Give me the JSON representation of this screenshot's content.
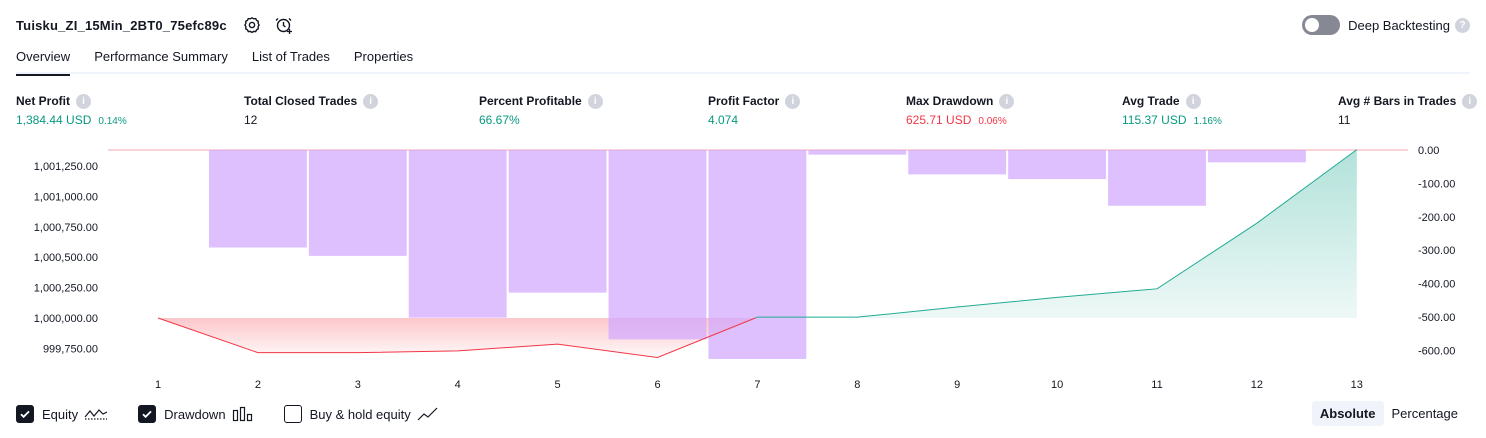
{
  "header": {
    "strategy_name": "Tuisku_ZI_15Min_2BT0_75efc89c",
    "deep_backtesting_label": "Deep Backtesting",
    "deep_backtesting_on": false
  },
  "tabs": [
    {
      "label": "Overview",
      "active": true
    },
    {
      "label": "Performance Summary"
    },
    {
      "label": "List of Trades"
    },
    {
      "label": "Properties"
    }
  ],
  "metrics": {
    "net_profit": {
      "label": "Net Profit",
      "value": "1,384.44 USD",
      "pct": "0.14%"
    },
    "total_closed_trades": {
      "label": "Total Closed Trades",
      "value": "12"
    },
    "percent_profitable": {
      "label": "Percent Profitable",
      "value": "66.67%"
    },
    "profit_factor": {
      "label": "Profit Factor",
      "value": "4.074"
    },
    "max_drawdown": {
      "label": "Max Drawdown",
      "value": "625.71 USD",
      "pct": "0.06%"
    },
    "avg_trade": {
      "label": "Avg Trade",
      "value": "115.37 USD",
      "pct": "1.16%"
    },
    "avg_bars": {
      "label": "Avg # Bars in Trades",
      "value": "11"
    }
  },
  "legend": {
    "equity_label": "Equity",
    "equity_checked": true,
    "drawdown_label": "Drawdown",
    "drawdown_checked": true,
    "buyhold_label": "Buy & hold equity",
    "buyhold_checked": false
  },
  "modes": {
    "absolute": "Absolute",
    "percentage": "Percentage",
    "active": "absolute"
  },
  "colors": {
    "equity_line": "#22ab94",
    "equity_fill": "#d5efea",
    "loss_line": "#f23645",
    "loss_fill": "#fcd4d6",
    "drawdown_bar": "#d1a8ff",
    "zero_line": "#f5a6b5"
  },
  "chart_data": {
    "type": "line",
    "x": [
      1,
      2,
      3,
      4,
      5,
      6,
      7,
      8,
      9,
      10,
      11,
      12,
      13
    ],
    "series": [
      {
        "name": "Equity",
        "axis": "left",
        "values": [
          1000000.0,
          999715.0,
          999715.0,
          999730.0,
          999785.0,
          999675.0,
          1000007.0,
          1000007.0,
          1000090.0,
          1000170.0,
          1000240.0,
          1000780.0,
          1001384.44
        ]
      },
      {
        "name": "Drawdown",
        "axis": "right",
        "type": "bar",
        "values": [
          0,
          -292,
          -317,
          -502,
          -427,
          -567,
          -625.71,
          -14,
          -73,
          -87,
          -167,
          -37,
          0
        ]
      }
    ],
    "left_axis": {
      "ticks": [
        "1,001,250.00",
        "1,001,000.00",
        "1,000,750.00",
        "1,000,500.00",
        "1,000,250.00",
        "1,000,000.00",
        "999,750.00"
      ],
      "tick_values": [
        1001250,
        1001000,
        1000750,
        1000500,
        1000250,
        1000000,
        999750
      ]
    },
    "right_axis": {
      "ticks": [
        "0.00",
        "-100.00",
        "-200.00",
        "-300.00",
        "-400.00",
        "-500.00",
        "-600.00"
      ],
      "tick_values": [
        0,
        -100,
        -200,
        -300,
        -400,
        -500,
        -600
      ]
    },
    "x_ticks": [
      "1",
      "2",
      "3",
      "4",
      "5",
      "6",
      "7",
      "8",
      "9",
      "10",
      "11",
      "12",
      "13"
    ]
  }
}
